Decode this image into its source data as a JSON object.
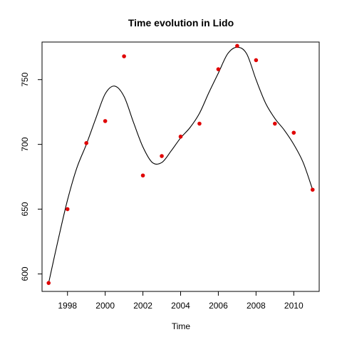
{
  "chart_data": {
    "type": "scatter",
    "title": "Time evolution in Lido",
    "xlabel": "Time",
    "ylabel": "",
    "xlim": [
      1996.65,
      2011.35
    ],
    "ylim": [
      586.5,
      779
    ],
    "x_ticks": [
      1998,
      2000,
      2002,
      2004,
      2006,
      2008,
      2010
    ],
    "y_ticks": [
      600,
      650,
      700,
      750
    ],
    "grid": false,
    "legend": "none",
    "colors": {
      "points": "#e00000",
      "line": "#000000",
      "axis": "#000000"
    },
    "series": [
      {
        "type": "scatter",
        "x": [
          1997,
          1998,
          1999,
          2000,
          2001,
          2002,
          2003,
          2004,
          2005,
          2006,
          2007,
          2008,
          2009,
          2010,
          2011
        ],
        "y": [
          593,
          650,
          701,
          718,
          768,
          676,
          691,
          706,
          716,
          758,
          776,
          765,
          716,
          709,
          665
        ]
      },
      {
        "type": "line",
        "x": [
          1997,
          1997.5,
          1998,
          1998.5,
          1999,
          1999.5,
          2000,
          2000.5,
          2001,
          2001.5,
          2002,
          2002.5,
          2003,
          2003.5,
          2004,
          2004.5,
          2005,
          2005.5,
          2006,
          2006.5,
          2007,
          2007.5,
          2008,
          2008.5,
          2009,
          2009.5,
          2010,
          2010.5,
          2011
        ],
        "y": [
          593,
          626,
          657,
          682,
          700,
          720,
          739,
          745,
          737,
          717,
          698,
          686,
          686,
          695,
          705,
          713,
          724,
          740,
          755,
          770,
          775,
          770,
          750,
          732,
          720,
          711,
          700,
          686,
          665
        ]
      }
    ]
  }
}
